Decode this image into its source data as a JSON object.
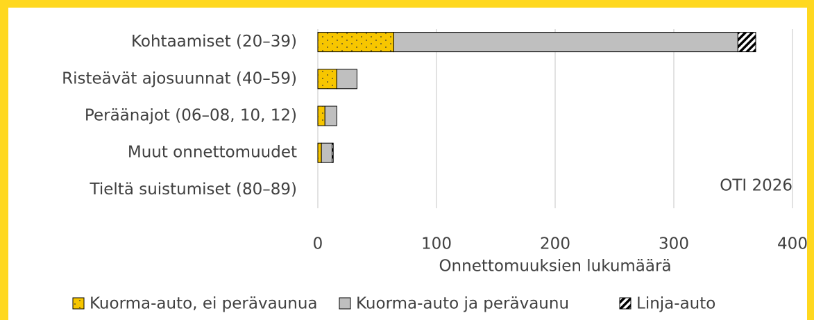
{
  "chart_data": {
    "type": "stacked_barh",
    "categories": [
      "Kohtaamiset (20–39)",
      "Risteävät ajosuunnat (40–59)",
      "Peräänajot (06–08, 10, 12)",
      "Muut onnettomuudet",
      "Tieltä suistumiset (80–89)"
    ],
    "series": [
      {
        "name": "Kuorma-auto, ei perävaunua",
        "color": "#f7c600",
        "pattern": "dots",
        "values": [
          64,
          16,
          6,
          3,
          0
        ]
      },
      {
        "name": "Kuorma-auto ja perävaunu",
        "color": "#bfbfbf",
        "pattern": "solid",
        "values": [
          290,
          17,
          10,
          9,
          0
        ]
      },
      {
        "name": "Linja-auto",
        "color": "#ffffff",
        "pattern": "stripes",
        "values": [
          15,
          0,
          0,
          1,
          0
        ]
      }
    ],
    "xlabel": "Onnettomuuksien lukumäärä",
    "xlim": [
      0,
      400
    ],
    "xticks": [
      0,
      100,
      200,
      300,
      400
    ],
    "grid": true,
    "annotation": "OTI 2026",
    "legend": "bottom"
  }
}
